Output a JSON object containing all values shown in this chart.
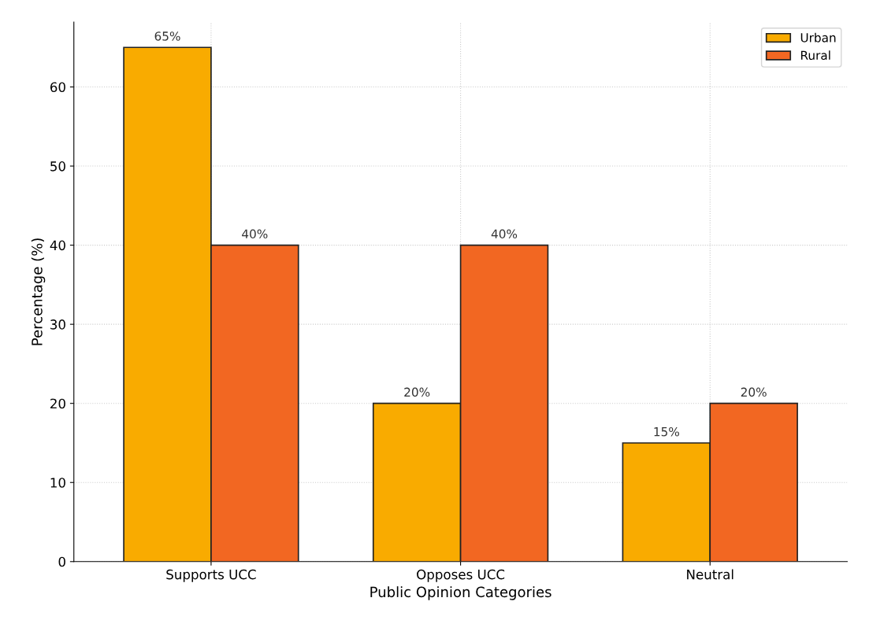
{
  "chart_data": {
    "type": "bar",
    "xlabel": "Public Opinion Categories",
    "ylabel": "Percentage (%)",
    "categories": [
      "Supports UCC",
      "Opposes UCC",
      "Neutral"
    ],
    "series": [
      {
        "name": "Urban",
        "color": "#f9ab00",
        "values": [
          65,
          20,
          15
        ],
        "value_labels": [
          "65%",
          "20%",
          "15%"
        ]
      },
      {
        "name": "Rural",
        "color": "#f26722",
        "values": [
          40,
          40,
          20
        ],
        "value_labels": [
          "40%",
          "40%",
          "20%"
        ]
      }
    ],
    "ylim": [
      0,
      68.2
    ],
    "yticks": [
      0,
      10,
      20,
      30,
      40,
      50,
      60
    ],
    "grid": true,
    "legend": "top right"
  }
}
